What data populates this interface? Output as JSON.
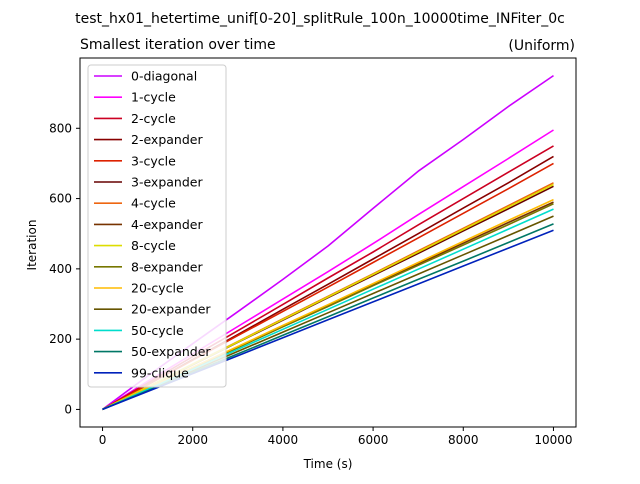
{
  "figure": {
    "suptitle": "test_hx01_hetertime_unif[0-20]_splitRule_100n_10000time_INFiter_0c",
    "title_left": "Smallest iteration over time",
    "title_right": "(Uniform)"
  },
  "chart_data": {
    "type": "line",
    "title": "Smallest iteration over time",
    "subtitle": "(Uniform)",
    "xlabel": "Time (s)",
    "ylabel": "Iteration",
    "xlim": [
      -500,
      10500
    ],
    "ylim": [
      -50,
      1000
    ],
    "xticks": [
      0,
      2000,
      4000,
      6000,
      8000,
      10000
    ],
    "yticks": [
      0,
      200,
      400,
      600,
      800
    ],
    "grid": false,
    "legend_position": "upper-left",
    "x": [
      0,
      1000,
      2000,
      3000,
      4000,
      5000,
      6000,
      7000,
      8000,
      9000,
      10000
    ],
    "series": [
      {
        "name": "0-diagonal",
        "color": "#cc00ff",
        "values": [
          0,
          95,
          187,
          278,
          370,
          465,
          572,
          678,
          768,
          862,
          950
        ]
      },
      {
        "name": "1-cycle",
        "color": "#ff00ff",
        "values": [
          0,
          80,
          158,
          236,
          314,
          392,
          472,
          554,
          634,
          714,
          795
        ]
      },
      {
        "name": "2-cycle",
        "color": "#cc0022",
        "values": [
          0,
          75,
          150,
          224,
          299,
          374,
          448,
          525,
          600,
          675,
          750
        ]
      },
      {
        "name": "2-expander",
        "color": "#880000",
        "values": [
          0,
          70,
          142,
          213,
          285,
          356,
          428,
          500,
          573,
          645,
          720
        ]
      },
      {
        "name": "3-cycle",
        "color": "#dd2200",
        "values": [
          0,
          70,
          140,
          210,
          279,
          348,
          418,
          488,
          558,
          628,
          700
        ]
      },
      {
        "name": "3-expander",
        "color": "#660000",
        "values": [
          0,
          63,
          127,
          191,
          254,
          318,
          381,
          444,
          508,
          571,
          635
        ]
      },
      {
        "name": "4-cycle",
        "color": "#ee6611",
        "values": [
          0,
          64,
          129,
          193,
          258,
          322,
          386,
          451,
          515,
          580,
          645
        ]
      },
      {
        "name": "4-expander",
        "color": "#773300",
        "values": [
          0,
          60,
          119,
          178,
          237,
          296,
          355,
          414,
          473,
          532,
          590
        ]
      },
      {
        "name": "8-cycle",
        "color": "#dddd00",
        "values": [
          0,
          64,
          128,
          192,
          256,
          320,
          384,
          448,
          512,
          576,
          640
        ]
      },
      {
        "name": "8-expander",
        "color": "#777700",
        "values": [
          0,
          59,
          118,
          176,
          235,
          293,
          352,
          410,
          468,
          526,
          585
        ]
      },
      {
        "name": "20-cycle",
        "color": "#ffbb00",
        "values": [
          0,
          60,
          120,
          179,
          239,
          298,
          358,
          418,
          478,
          538,
          597
        ]
      },
      {
        "name": "20-expander",
        "color": "#665500",
        "values": [
          0,
          55,
          110,
          165,
          220,
          275,
          330,
          385,
          440,
          495,
          550
        ]
      },
      {
        "name": "50-cycle",
        "color": "#00ddcc",
        "values": [
          0,
          57,
          114,
          171,
          228,
          285,
          342,
          399,
          456,
          513,
          570
        ]
      },
      {
        "name": "50-expander",
        "color": "#007766",
        "values": [
          0,
          53,
          106,
          158,
          211,
          264,
          317,
          370,
          422,
          475,
          528
        ]
      },
      {
        "name": "99-clique",
        "color": "#0022bb",
        "values": [
          0,
          51,
          102,
          153,
          204,
          255,
          306,
          357,
          408,
          459,
          510
        ]
      }
    ]
  }
}
